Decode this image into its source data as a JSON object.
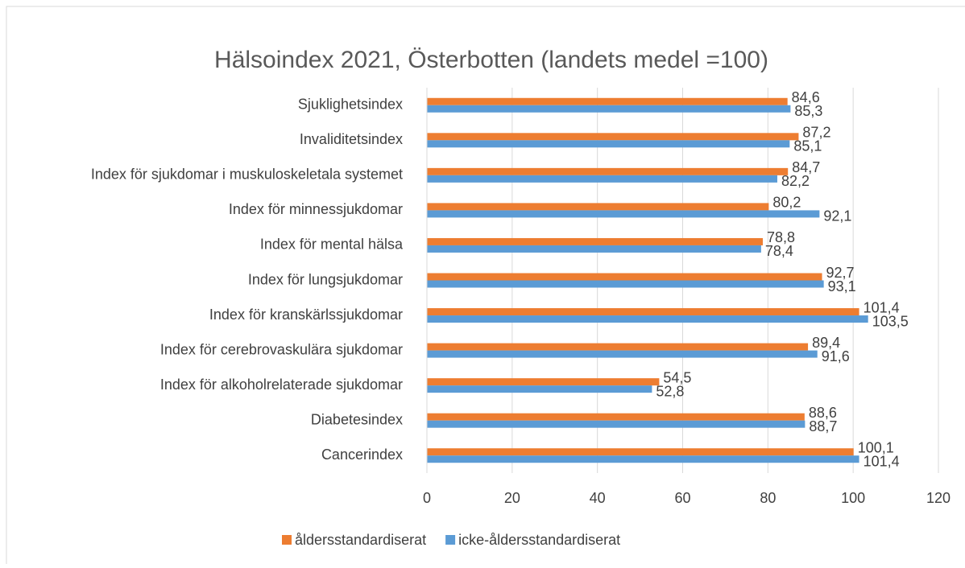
{
  "chart_data": {
    "type": "barh",
    "title": "Hälsoindex 2021, Österbotten (landets medel =100)",
    "categories": [
      "Sjuklighetsindex",
      "Invaliditetsindex",
      "Index för sjukdomar i muskuloskeletala systemet",
      "Index för minnessjukdomar",
      "Index för mental hälsa",
      "Index för lungsjukdomar",
      "Index för kranskärlssjukdomar",
      "Index för cerebrovaskulära sjukdomar",
      "Index för alkoholrelaterade sjukdomar",
      "Diabetesindex",
      "Cancerindex"
    ],
    "series": [
      {
        "name": "åldersstandardiserat",
        "color": "#ed7d31",
        "values": [
          84.6,
          87.2,
          84.7,
          80.2,
          78.8,
          92.7,
          101.4,
          89.4,
          54.5,
          88.6,
          100.1
        ],
        "value_labels": [
          "84,6",
          "87,2",
          "84,7",
          "80,2",
          "78,8",
          "92,7",
          "101,4",
          "89,4",
          "54,5",
          "88,6",
          "100,1"
        ]
      },
      {
        "name": "icke-åldersstandardiserat",
        "color": "#5b9bd5",
        "values": [
          85.3,
          85.1,
          82.2,
          92.1,
          78.4,
          93.1,
          103.5,
          91.6,
          52.8,
          88.7,
          101.4
        ],
        "value_labels": [
          "85,3",
          "85,1",
          "82,2",
          "92,1",
          "78,4",
          "93,1",
          "103,5",
          "91,6",
          "52,8",
          "88,7",
          "101,4"
        ]
      }
    ],
    "xlim": [
      0,
      120
    ],
    "xticks": [
      0,
      20,
      40,
      60,
      80,
      100,
      120
    ],
    "grid": true,
    "legend": "bottom"
  }
}
